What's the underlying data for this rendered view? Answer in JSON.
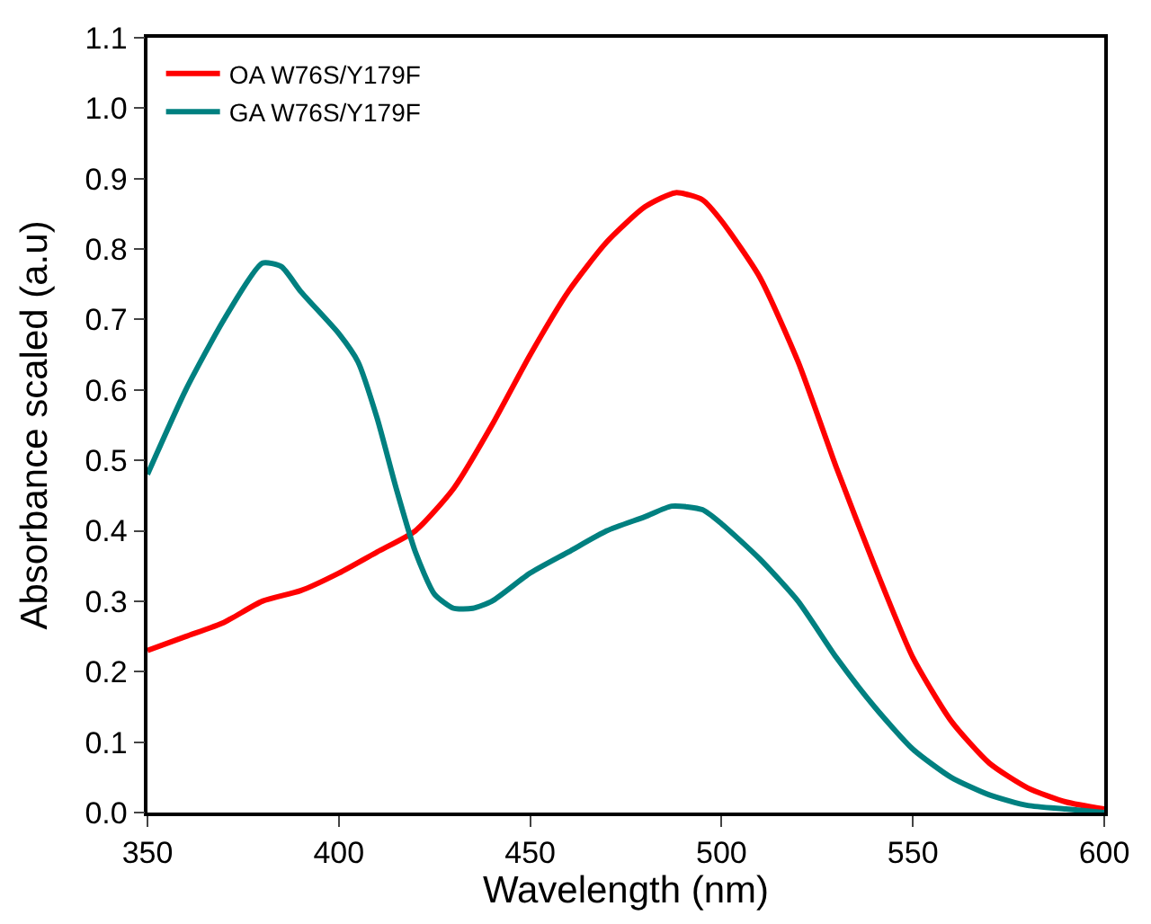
{
  "chart_data": {
    "type": "line",
    "xlabel": "Wavelength (nm)",
    "ylabel": "Absorbance scaled (a.u)",
    "xlim": [
      350,
      600
    ],
    "xticks": [
      350,
      400,
      450,
      500,
      550,
      600
    ],
    "ylim": [
      0,
      1.1
    ],
    "yticks": [
      {
        "value": 0,
        "label": "0.0"
      },
      0.1,
      0.2,
      0.3,
      0.4,
      0.5,
      0.6,
      0.7,
      0.8,
      0.9,
      {
        "value": 1,
        "label": "1.0"
      },
      1.1
    ],
    "legend": "top left",
    "marker": "none",
    "line_style": "solid",
    "series": [
      {
        "name": "OA W76S/Y179F",
        "color": "#ff0000",
        "x": [
          350,
          360,
          370,
          380,
          390,
          400,
          410,
          420,
          430,
          440,
          450,
          460,
          470,
          480,
          488,
          495,
          500,
          510,
          520,
          530,
          540,
          550,
          560,
          570,
          580,
          590,
          600
        ],
        "values": [
          0.23,
          0.25,
          0.27,
          0.3,
          0.315,
          0.34,
          0.37,
          0.4,
          0.46,
          0.55,
          0.65,
          0.74,
          0.81,
          0.86,
          0.88,
          0.87,
          0.84,
          0.76,
          0.64,
          0.49,
          0.35,
          0.22,
          0.13,
          0.07,
          0.035,
          0.015,
          0.005
        ]
      },
      {
        "name": "GA W76S/Y179F",
        "color": "#008080",
        "x": [
          350,
          360,
          370,
          380,
          385,
          390,
          400,
          405,
          410,
          415,
          420,
          425,
          430,
          435,
          440,
          450,
          460,
          470,
          480,
          487,
          495,
          500,
          510,
          520,
          530,
          540,
          550,
          560,
          570,
          580,
          590,
          600
        ],
        "values": [
          0.48,
          0.6,
          0.7,
          0.78,
          0.775,
          0.74,
          0.68,
          0.64,
          0.56,
          0.46,
          0.37,
          0.31,
          0.29,
          0.29,
          0.3,
          0.34,
          0.37,
          0.4,
          0.42,
          0.435,
          0.43,
          0.41,
          0.36,
          0.3,
          0.22,
          0.15,
          0.09,
          0.05,
          0.025,
          0.01,
          0.005,
          0.0
        ]
      }
    ]
  }
}
